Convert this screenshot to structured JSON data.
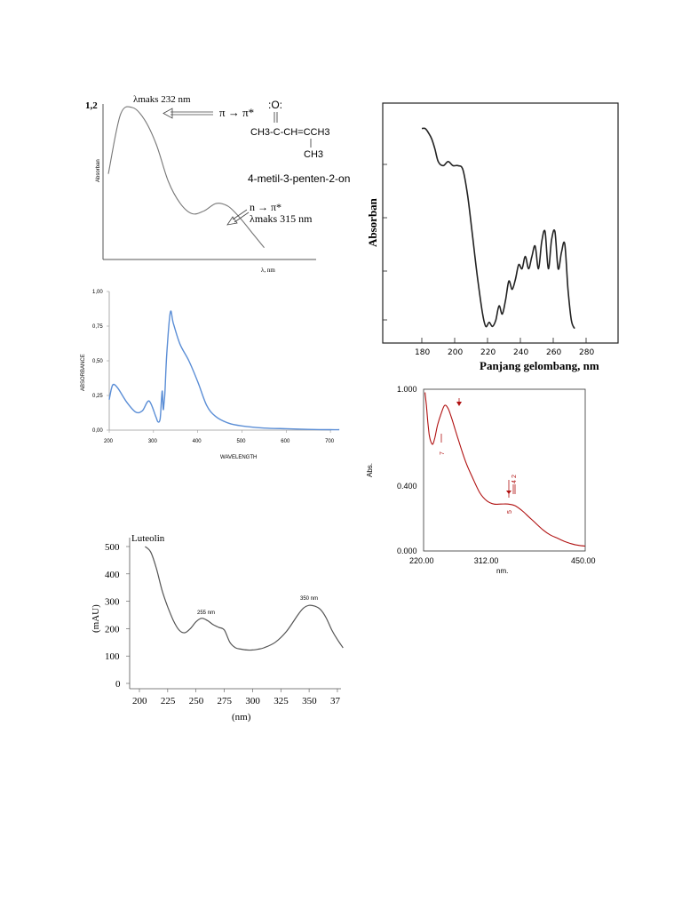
{
  "chart_data": [
    {
      "id": "enone",
      "type": "line",
      "title": "",
      "xlabel": "λ, nm",
      "ylabel": "Absorban",
      "y_tick_labels": [
        "1,2"
      ],
      "annotations": {
        "peak1": "λmaks 232 nm",
        "transition1": "π → π*",
        "peak2_transition": "n → π*",
        "peak2": "λmaks 315 nm",
        "compound": "4-metil-3-penten-2-on",
        "structure_o": ":O:",
        "structure_main": "CH3-C-CH=CCH3",
        "structure_sub": "CH3"
      },
      "series": [
        {
          "x": [
            0,
            1,
            2,
            3,
            4,
            5,
            6,
            7,
            8,
            9,
            10,
            11,
            12,
            13
          ],
          "y": [
            0.55,
            0.95,
            1.0,
            0.92,
            0.75,
            0.5,
            0.35,
            0.28,
            0.3,
            0.35,
            0.33,
            0.25,
            0.15,
            0.05
          ]
        }
      ]
    },
    {
      "id": "absorbance",
      "type": "line",
      "xlabel": "WAVELENGTH",
      "ylabel": "ABSORBANCE",
      "xlim": [
        200,
        720
      ],
      "ylim": [
        0,
        1
      ],
      "x_ticks": [
        200,
        300,
        400,
        500,
        600,
        700
      ],
      "y_ticks": [
        "0,00",
        "0,25",
        "0,50",
        "0,75",
        "1,00"
      ],
      "color": "#5b8ed6",
      "series": [
        {
          "x": [
            200,
            205,
            210,
            220,
            240,
            260,
            275,
            290,
            305,
            310,
            315,
            318,
            320,
            322,
            324,
            326,
            330,
            338,
            345,
            360,
            380,
            400,
            420,
            440,
            470,
            500,
            550,
            600,
            650,
            700,
            720
          ],
          "y": [
            0.22,
            0.3,
            0.33,
            0.3,
            0.2,
            0.13,
            0.14,
            0.21,
            0.1,
            0.06,
            0.08,
            0.22,
            0.28,
            0.15,
            0.2,
            0.28,
            0.55,
            0.85,
            0.77,
            0.62,
            0.5,
            0.35,
            0.18,
            0.1,
            0.05,
            0.03,
            0.015,
            0.01,
            0.005,
            0.003,
            0.003
          ]
        }
      ]
    },
    {
      "id": "luteolin",
      "type": "line",
      "title": "Luteolin",
      "xlabel": "(nm)",
      "ylabel": "(mAU)",
      "xlim": [
        195,
        380
      ],
      "ylim": [
        0,
        500
      ],
      "x_ticks": [
        "200",
        "225",
        "250",
        "275",
        "300",
        "325",
        "350",
        "37"
      ],
      "y_ticks": [
        0,
        100,
        200,
        300,
        400,
        500
      ],
      "annotations": {
        "peak1": "255 nm",
        "peak2": "350 nm"
      },
      "series": [
        {
          "x": [
            205,
            210,
            215,
            220,
            225,
            230,
            235,
            240,
            245,
            250,
            255,
            260,
            265,
            270,
            275,
            280,
            285,
            290,
            295,
            300,
            305,
            310,
            320,
            330,
            340,
            345,
            350,
            355,
            360,
            365,
            370,
            375,
            380
          ],
          "y": [
            500,
            480,
            420,
            340,
            280,
            230,
            195,
            185,
            200,
            225,
            238,
            230,
            215,
            205,
            195,
            150,
            130,
            125,
            122,
            122,
            125,
            130,
            150,
            190,
            250,
            275,
            285,
            282,
            270,
            240,
            195,
            160,
            130
          ]
        }
      ]
    },
    {
      "id": "gelombang",
      "type": "line",
      "xlabel": "Panjang gelombang, nm",
      "ylabel": "Absorban",
      "xlim": [
        170,
        295
      ],
      "x_ticks": [
        180,
        200,
        220,
        240,
        260,
        280
      ],
      "series": [
        {
          "x": [
            180,
            182,
            184,
            186,
            188,
            190,
            193,
            196,
            199,
            202,
            205,
            208,
            211,
            214,
            217,
            219,
            221,
            223,
            225,
            227,
            229,
            231,
            233,
            235,
            237,
            239,
            241,
            243,
            245,
            247,
            249,
            251,
            253,
            255,
            257,
            259,
            261,
            263,
            265,
            267,
            269,
            271,
            273
          ],
          "y": [
            0.98,
            0.98,
            0.96,
            0.93,
            0.88,
            0.82,
            0.8,
            0.82,
            0.8,
            0.8,
            0.78,
            0.65,
            0.45,
            0.25,
            0.08,
            0.02,
            0.04,
            0.02,
            0.05,
            0.12,
            0.08,
            0.15,
            0.24,
            0.2,
            0.25,
            0.32,
            0.3,
            0.36,
            0.3,
            0.36,
            0.41,
            0.3,
            0.43,
            0.48,
            0.3,
            0.44,
            0.48,
            0.3,
            0.38,
            0.42,
            0.2,
            0.05,
            0.01
          ]
        }
      ]
    },
    {
      "id": "abs_red",
      "type": "line",
      "xlabel": "nm.",
      "ylabel": "Abs.",
      "xlim": [
        220,
        450
      ],
      "ylim": [
        0,
        1
      ],
      "x_ticks": [
        "220.00",
        "312.00",
        "450.00"
      ],
      "y_ticks": [
        "0.000",
        "0.400",
        "1.000"
      ],
      "color": "#b01010",
      "markers": {
        "m1": "7",
        "m2": "5",
        "m3": "4",
        "m4": "2"
      },
      "series": [
        {
          "x": [
            222,
            224,
            226,
            228,
            230,
            233,
            236,
            240,
            245,
            250,
            255,
            260,
            265,
            270,
            280,
            290,
            300,
            310,
            320,
            330,
            340,
            350,
            360,
            370,
            380,
            390,
            400,
            410,
            420,
            430,
            440,
            450
          ],
          "y": [
            0.98,
            0.9,
            0.8,
            0.72,
            0.68,
            0.66,
            0.7,
            0.78,
            0.85,
            0.9,
            0.88,
            0.82,
            0.75,
            0.68,
            0.55,
            0.45,
            0.36,
            0.31,
            0.29,
            0.29,
            0.29,
            0.28,
            0.25,
            0.21,
            0.17,
            0.13,
            0.1,
            0.08,
            0.06,
            0.045,
            0.035,
            0.03
          ]
        }
      ]
    }
  ]
}
